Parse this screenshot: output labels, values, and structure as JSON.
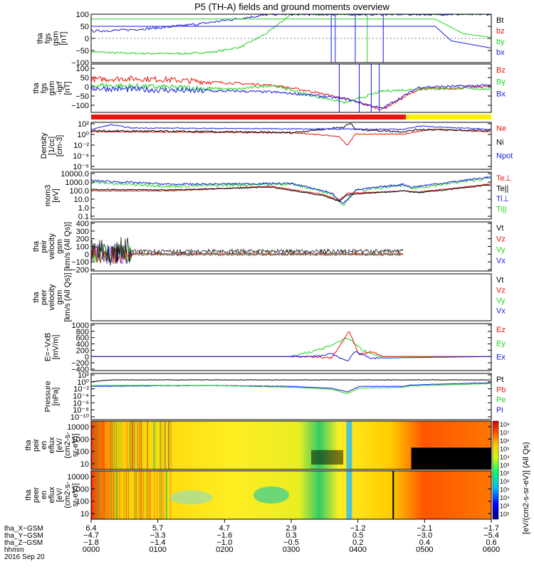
{
  "title": "P5 (TH-A) fields and ground moments overview",
  "colors": {
    "black": "#000000",
    "red": "#e8140c",
    "green": "#22d322",
    "blue": "#1a1ae6",
    "yellow": "#ffee00"
  },
  "chart_data": [
    {
      "type": "line",
      "panel": "fgs_gsm",
      "ylabel": [
        "tha",
        "fgs",
        "gsm",
        "[nT]"
      ],
      "ylim": [
        -100,
        100
      ],
      "yticks": [
        "100",
        "50",
        "0",
        "−50",
        "−100"
      ],
      "series": [
        {
          "name": "Bt",
          "color": "#000000"
        },
        {
          "name": "bz",
          "color": "#e8140c",
          "values": []
        },
        {
          "name": "by",
          "color": "#22d322",
          "values": [
            -55,
            -60,
            -62,
            -63,
            -62,
            -55,
            -35,
            20,
            100
          ]
        },
        {
          "name": "bx",
          "color": "#1a1ae6",
          "values": [
            30,
            35,
            45,
            60,
            80,
            100
          ]
        }
      ]
    },
    {
      "type": "line",
      "panel": "fgs_gse",
      "ylabel": [
        "tha",
        "fgs",
        "gsm",
        "-igrf",
        "[nT]"
      ],
      "ylim": [
        -130,
        120
      ],
      "yticks": [
        "100",
        "50",
        "0",
        "−50",
        "−100"
      ],
      "series": [
        {
          "name": "Bz",
          "color": "#e8140c",
          "values": [
            40,
            45,
            40,
            30,
            20,
            10,
            -20,
            -60,
            -115,
            -10,
            -5,
            5
          ]
        },
        {
          "name": "By",
          "color": "#22d322",
          "values": [
            10,
            5,
            0,
            -5,
            -10,
            10,
            -40,
            -80,
            -20,
            -10,
            -5,
            -10
          ]
        },
        {
          "name": "Bx",
          "color": "#1a1ae6",
          "values": [
            -5,
            -10,
            -15,
            -20,
            -20,
            -25,
            -40,
            -60,
            -110,
            0,
            5,
            10
          ]
        }
      ]
    },
    {
      "type": "line",
      "panel": "density",
      "ylabel": [
        "Density",
        "[1/cc]",
        "[cm-3]"
      ],
      "yticks": [
        "10²",
        "10⁰",
        "10⁻²",
        "10⁻⁴",
        "10⁻⁶"
      ],
      "series": [
        {
          "name": "Ne",
          "color": "#e8140c"
        },
        {
          "name": "Ni",
          "color": "#000000"
        },
        {
          "name": "Npot",
          "color": "#1a1ae6"
        }
      ]
    },
    {
      "type": "line",
      "panel": "temperature",
      "ylabel": [
        "mom3",
        "[eV]"
      ],
      "yticks": [
        "10000.0",
        "1000.0",
        "100.0",
        "10.0",
        "1.0",
        "0.1"
      ],
      "series": [
        {
          "name": "Te⊥",
          "color": "#e8140c"
        },
        {
          "name": "Te||",
          "color": "#000000"
        },
        {
          "name": "Ti⊥",
          "color": "#1a1ae6"
        },
        {
          "name": "Ti||",
          "color": "#22d322"
        }
      ]
    },
    {
      "type": "line",
      "panel": "peir_velocity",
      "ylabel": [
        "tha",
        "peir",
        "velocity",
        "gsm",
        "[km/s (All Qs)]"
      ],
      "ylim": [
        -200,
        400
      ],
      "yticks": [
        "400",
        "300",
        "200",
        "100",
        "0",
        "−100",
        "−200"
      ],
      "series": [
        {
          "name": "Vt",
          "color": "#000000"
        },
        {
          "name": "Vz",
          "color": "#e8140c"
        },
        {
          "name": "Vy",
          "color": "#22d322"
        },
        {
          "name": "Vx",
          "color": "#1a1ae6"
        }
      ]
    },
    {
      "type": "line",
      "panel": "peer_velocity",
      "ylabel": [
        "tha",
        "peer",
        "velocity",
        "gsm",
        "[km/s (All Qs)]"
      ],
      "series": [
        {
          "name": "Vt",
          "color": "#000000"
        },
        {
          "name": "Vz",
          "color": "#e8140c"
        },
        {
          "name": "Vy",
          "color": "#22d322"
        },
        {
          "name": "Vx",
          "color": "#1a1ae6"
        }
      ]
    },
    {
      "type": "line",
      "panel": "efield",
      "ylabel": [
        "E=−VxB",
        "[mV/m]"
      ],
      "ylim": [
        -400,
        1000
      ],
      "yticks": [
        "1000",
        "800",
        "600",
        "400",
        "200",
        "0",
        "−200",
        "−400"
      ],
      "series": [
        {
          "name": "Ez",
          "color": "#e8140c"
        },
        {
          "name": "Ey",
          "color": "#22d322"
        },
        {
          "name": "Ex",
          "color": "#1a1ae6"
        }
      ]
    },
    {
      "type": "line",
      "panel": "pressure",
      "ylabel": [
        "Pressure",
        "[nPa]"
      ],
      "yticks": [
        "10²",
        "10⁰",
        "10⁻²",
        "10⁻⁴",
        "10⁻⁶",
        "10⁻⁸",
        "10⁻¹⁰"
      ],
      "series": [
        {
          "name": "Pt",
          "color": "#000000"
        },
        {
          "name": "Pb",
          "color": "#e8140c"
        },
        {
          "name": "Pe",
          "color": "#22d322"
        },
        {
          "name": "Pi",
          "color": "#1a1ae6"
        }
      ]
    },
    {
      "type": "heatmap",
      "panel": "peir_eflux",
      "ylabel": [
        "tha",
        "peir",
        "en",
        "eflux",
        "[eV/",
        "(cm2-s-",
        "sr-eV)]"
      ],
      "yticks": [
        "10000",
        "1000",
        "100",
        "10"
      ]
    },
    {
      "type": "heatmap",
      "panel": "peer_eflux",
      "ylabel": [
        "tha",
        "peer",
        "en",
        "eflux",
        "[eV/",
        "(cm2-s-",
        "sr-eV)]"
      ],
      "yticks": [
        "10000",
        "1000",
        "100",
        "10"
      ]
    }
  ],
  "colorbar": {
    "ticks": [
      "10⁸",
      "10⁷",
      "10⁶",
      "10⁵",
      "10⁴",
      "10³",
      "10²",
      "10⁶",
      "10⁵",
      "10⁴",
      "10³",
      "10²"
    ],
    "label": "[eV/(cm2-s-sr-eV)] (All Qs)"
  },
  "xaxis": {
    "rows": [
      {
        "label": "tha_X−GSM",
        "values": [
          "6.4",
          "5.7",
          "4.7",
          "2.9",
          "−1.2",
          "−2.1",
          "−1.7"
        ]
      },
      {
        "label": "tha_Y−GSM",
        "values": [
          "−4.7",
          "−3.3",
          "−1.6",
          "0.3",
          "0.5",
          "−3.0",
          "−5.4"
        ]
      },
      {
        "label": "tha_Z−GSM",
        "values": [
          "−1.8",
          "−1.4",
          "−1.0",
          "−0.5",
          "0.2",
          "0.4",
          "0.6"
        ]
      },
      {
        "label": "hhmm",
        "values": [
          "0000",
          "0100",
          "0200",
          "0300",
          "0400",
          "0500",
          "0600"
        ]
      }
    ],
    "date": "2016 Sep 20"
  }
}
